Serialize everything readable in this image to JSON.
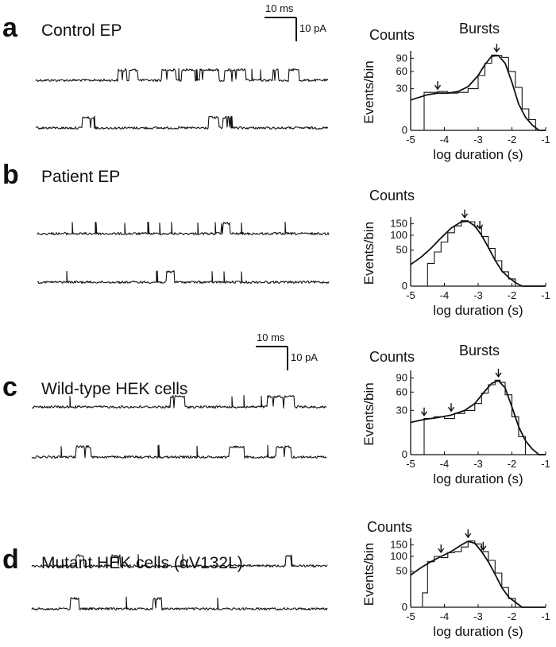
{
  "figure": {
    "scale_bars": [
      {
        "time_label": "10 ms",
        "current_label": "10 pA"
      },
      {
        "time_label": "10 ms",
        "current_label": "10 pA"
      }
    ]
  },
  "panels": [
    {
      "letter": "a",
      "title": "Control EP",
      "trace_events": [
        [
          [
            0.28,
            0.31
          ],
          [
            0.32,
            0.35
          ],
          [
            0.43,
            0.48
          ],
          [
            0.5,
            0.545
          ],
          [
            0.56,
            0.63
          ],
          [
            0.645,
            0.72
          ],
          [
            0.81,
            0.83
          ],
          [
            0.865,
            0.9
          ]
        ],
        [
          [
            0.16,
            0.2
          ],
          [
            0.59,
            0.625
          ],
          [
            0.64,
            0.67
          ]
        ]
      ],
      "trace_spikes": [
        [
          0.49,
          0.55,
          0.74,
          0.77
        ],
        [
          0.2,
          0.67
        ]
      ]
    },
    {
      "letter": "b",
      "title": "Patient EP",
      "trace_events": [
        [
          [
            0.63,
            0.66
          ]
        ],
        [
          [
            0.44,
            0.47
          ]
        ]
      ],
      "trace_spikes": [
        [
          0.12,
          0.2,
          0.3,
          0.38,
          0.42,
          0.46,
          0.55,
          0.61,
          0.7,
          0.85
        ],
        [
          0.1,
          0.41,
          0.6,
          0.64,
          0.7
        ]
      ]
    },
    {
      "letter": "c",
      "title": "Wild-type HEK cells",
      "trace_events": [
        [
          [
            0.47,
            0.52
          ],
          [
            0.8,
            0.89
          ]
        ],
        [
          [
            0.15,
            0.2
          ],
          [
            0.67,
            0.72
          ],
          [
            0.83,
            0.88
          ]
        ]
      ],
      "trace_spikes": [
        [
          0.13,
          0.68,
          0.72,
          0.78
        ],
        [
          0.1,
          0.43,
          0.56,
          0.8
        ]
      ]
    },
    {
      "letter": "d",
      "title": "Mutant HEK cells (αV132L)",
      "trace_events": [
        [
          [
            0.15,
            0.18
          ],
          [
            0.27,
            0.3
          ],
          [
            0.86,
            0.88
          ]
        ],
        [
          [
            0.13,
            0.16
          ],
          [
            0.41,
            0.44
          ]
        ]
      ],
      "trace_spikes": [
        [
          0.36,
          0.51,
          0.88
        ],
        [
          0.32,
          0.63
        ]
      ]
    }
  ],
  "chart_data": [
    {
      "type": "line",
      "panel": "a",
      "title": "Counts",
      "annotation": "Bursts",
      "xlabel": "log duration (s)",
      "ylabel": "Events/bin",
      "xlim": [
        -5,
        -1
      ],
      "xticks": [
        -5,
        -4,
        -3,
        -2,
        -1
      ],
      "yticks": [
        0,
        30,
        60,
        90
      ],
      "y_scale": "sqrt",
      "histogram_x": [
        -4.6,
        -4.2,
        -3.9,
        -3.6,
        -3.3,
        -3.0,
        -2.8,
        -2.6,
        -2.45,
        -2.3,
        -2.1,
        -1.9,
        -1.7,
        -1.5,
        -1.3
      ],
      "histogram_counts": [
        25,
        26,
        24,
        25,
        30,
        52,
        78,
        98,
        97,
        92,
        60,
        32,
        8,
        2,
        0
      ],
      "fit_x": [
        -5,
        -4.5,
        -4.2,
        -3.9,
        -3.6,
        -3.3,
        -3.0,
        -2.8,
        -2.6,
        -2.4,
        -2.2,
        -2.0,
        -1.8,
        -1.6,
        -1.4,
        -1.2,
        -1.0
      ],
      "fit_y": [
        16,
        22,
        24,
        24,
        26,
        33,
        52,
        75,
        95,
        97,
        78,
        40,
        12,
        3,
        0.5,
        0,
        0
      ],
      "arrows_x": [
        -4.2,
        -2.45
      ]
    },
    {
      "type": "line",
      "panel": "b",
      "title": "Counts",
      "xlabel": "log duration (s)",
      "ylabel": "Events/bin",
      "xlim": [
        -5,
        -1
      ],
      "xticks": [
        -5,
        -4,
        -3,
        -2,
        -1
      ],
      "yticks": [
        0,
        50,
        100,
        150
      ],
      "y_scale": "sqrt",
      "histogram_x": [
        -4.5,
        -4.3,
        -4.1,
        -3.9,
        -3.7,
        -3.5,
        -3.3,
        -3.1,
        -2.9,
        -2.7,
        -2.5,
        -2.3,
        -2.1,
        -1.9
      ],
      "histogram_counts": [
        20,
        45,
        75,
        110,
        140,
        165,
        160,
        135,
        95,
        55,
        25,
        8,
        2,
        0
      ],
      "fit_x": [
        -5,
        -4.7,
        -4.4,
        -4.1,
        -3.8,
        -3.5,
        -3.3,
        -3.1,
        -2.9,
        -2.7,
        -2.5,
        -2.3,
        -2.1,
        -1.9,
        -1.7,
        -1.5,
        -1.0
      ],
      "fit_y": [
        18,
        32,
        55,
        90,
        130,
        160,
        162,
        140,
        100,
        58,
        26,
        9,
        3,
        0.5,
        0,
        0,
        0
      ],
      "arrows_x": [
        -3.4,
        -2.95
      ]
    },
    {
      "type": "line",
      "panel": "c",
      "title": "Counts",
      "annotation": "Bursts",
      "xlabel": "log duration (s)",
      "ylabel": "Events/bin",
      "xlim": [
        -5,
        -1
      ],
      "xticks": [
        -5,
        -4,
        -3,
        -2,
        -1
      ],
      "yticks": [
        0,
        30,
        60,
        90
      ],
      "y_scale": "sqrt",
      "histogram_x": [
        -4.6,
        -4.3,
        -4.0,
        -3.7,
        -3.4,
        -3.1,
        -2.9,
        -2.7,
        -2.5,
        -2.35,
        -2.2,
        -2.0,
        -1.8,
        -1.6
      ],
      "histogram_counts": [
        20,
        22,
        20,
        26,
        30,
        40,
        58,
        75,
        85,
        80,
        55,
        22,
        5,
        0
      ],
      "fit_x": [
        -5,
        -4.6,
        -4.2,
        -3.8,
        -3.4,
        -3.1,
        -2.8,
        -2.6,
        -2.4,
        -2.2,
        -2.0,
        -1.8,
        -1.6,
        -1.4,
        -1.2,
        -1.0
      ],
      "fit_y": [
        16,
        19,
        21,
        24,
        30,
        40,
        62,
        78,
        84,
        68,
        35,
        12,
        3,
        0.5,
        0,
        0
      ],
      "arrows_x": [
        -4.6,
        -3.8,
        -2.4
      ]
    },
    {
      "type": "line",
      "panel": "d",
      "title": "Counts",
      "xlabel": "log duration (s)",
      "ylabel": "Events/bin",
      "xlim": [
        -5,
        -1
      ],
      "xticks": [
        -5,
        -4,
        -3,
        -2,
        -1
      ],
      "yticks": [
        0,
        50,
        100,
        150
      ],
      "y_scale": "sqrt",
      "histogram_x": [
        -4.65,
        -4.5,
        -4.3,
        -4.1,
        -3.9,
        -3.7,
        -3.5,
        -3.3,
        -3.1,
        -2.9,
        -2.7,
        -2.5,
        -2.3,
        -2.1,
        -1.9
      ],
      "histogram_counts": [
        8,
        80,
        100,
        95,
        115,
        120,
        140,
        170,
        155,
        120,
        85,
        45,
        15,
        3,
        0
      ],
      "fit_x": [
        -5,
        -4.7,
        -4.4,
        -4.1,
        -3.8,
        -3.5,
        -3.3,
        -3.1,
        -2.9,
        -2.7,
        -2.5,
        -2.3,
        -2.1,
        -1.9,
        -1.7,
        -1.4,
        -1.0
      ],
      "fit_y": [
        40,
        60,
        80,
        100,
        120,
        150,
        168,
        158,
        120,
        80,
        42,
        15,
        4,
        1,
        0,
        0,
        0
      ],
      "arrows_x": [
        -4.1,
        -3.3,
        -2.85
      ]
    }
  ]
}
